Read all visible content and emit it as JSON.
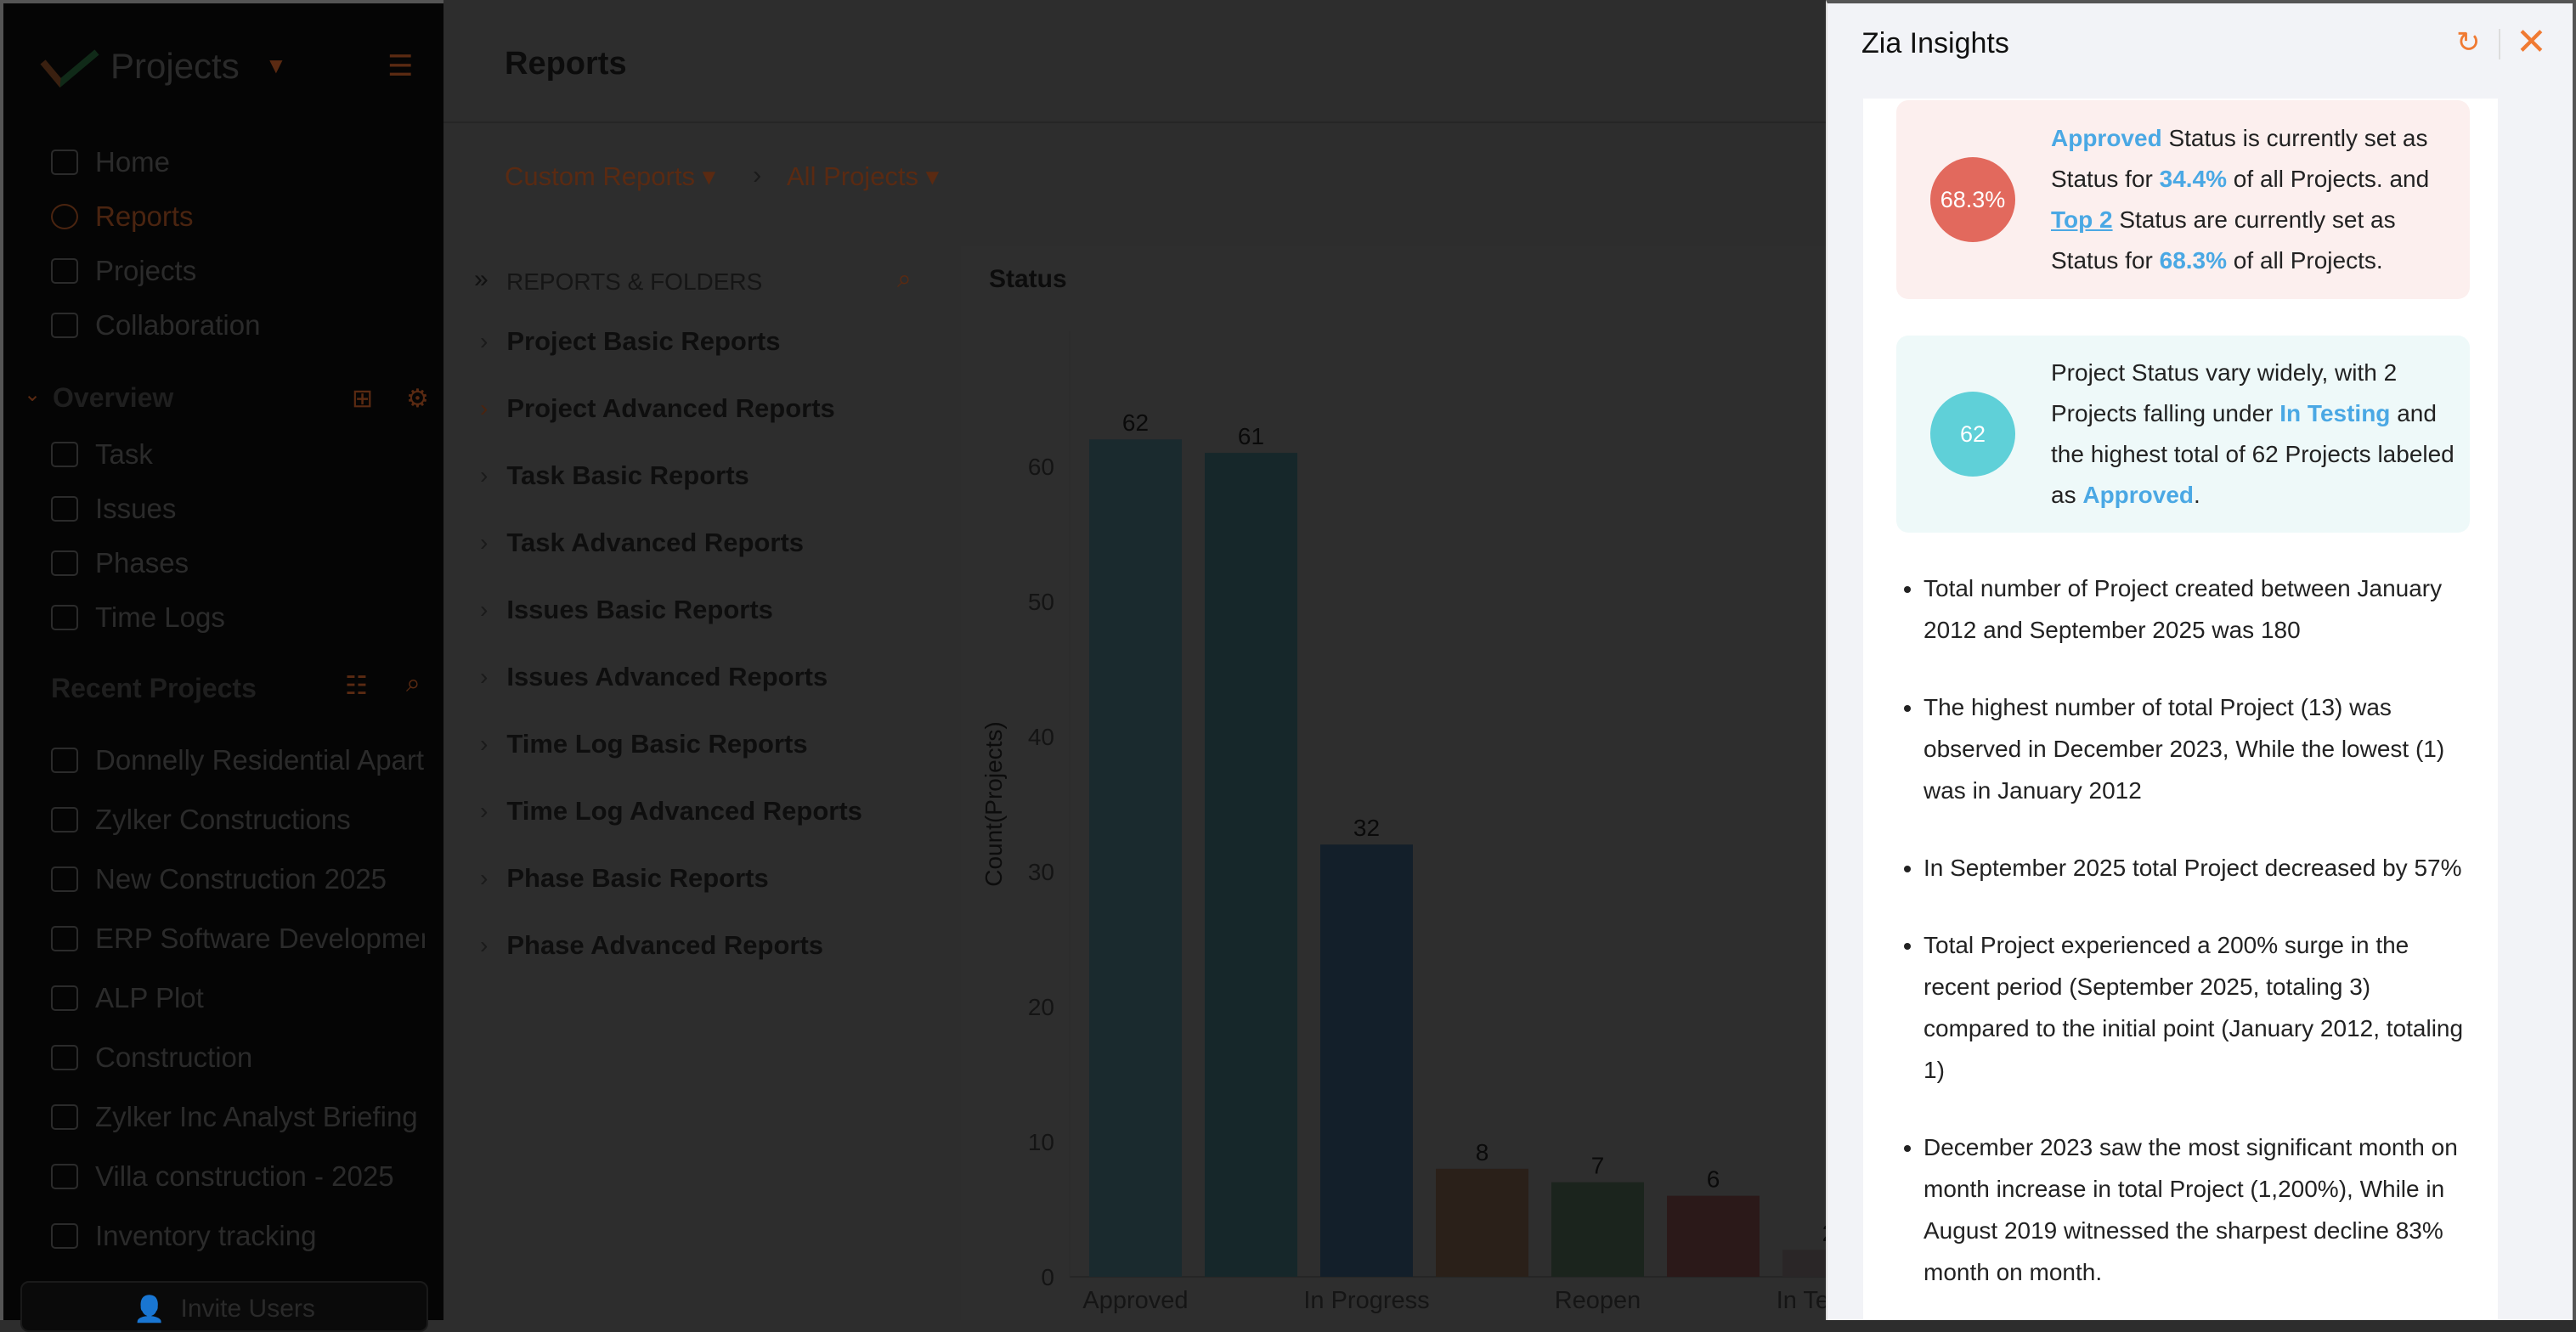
{
  "sidebar": {
    "app_title": "Projects",
    "nav": [
      {
        "label": "Home",
        "icon": "home-icon"
      },
      {
        "label": "Reports",
        "icon": "reports-icon"
      },
      {
        "label": "Projects",
        "icon": "projects-icon"
      },
      {
        "label": "Collaboration",
        "icon": "collaboration-icon"
      }
    ],
    "overview_label": "Overview",
    "overview_items": [
      {
        "label": "Task",
        "icon": "task-icon"
      },
      {
        "label": "Issues",
        "icon": "issues-icon"
      },
      {
        "label": "Phases",
        "icon": "phases-icon"
      },
      {
        "label": "Time Logs",
        "icon": "timer-icon"
      }
    ],
    "recent_label": "Recent Projects",
    "recent_projects": [
      "Donnelly Residential Apartments",
      "Zylker Constructions",
      "New Construction 2025",
      "ERP Software Development",
      "ALP Plot",
      "Construction",
      "Zylker Inc Analyst Briefing",
      "Villa construction - 2025",
      "Inventory tracking"
    ],
    "invite_label": "Invite Users"
  },
  "header": {
    "title": "Reports"
  },
  "breadcrumb": {
    "custom": "Custom Reports",
    "all": "All Projects"
  },
  "folders": {
    "heading": "REPORTS & FOLDERS",
    "items": [
      "Project Basic Reports",
      "Project Advanced Reports",
      "Task Basic Reports",
      "Task Advanced Reports",
      "Issues Basic Reports",
      "Issues Advanced Reports",
      "Time Log Basic Reports",
      "Time Log Advanced Reports",
      "Phase Basic Reports",
      "Phase Advanced Reports"
    ]
  },
  "chart_data": {
    "type": "bar",
    "title": "Status",
    "xlabel": "",
    "ylabel": "Count(Projects)",
    "categories": [
      "Approved",
      "",
      "In Progress",
      "",
      "Reopen",
      "",
      "In Testing"
    ],
    "values": [
      62,
      61,
      32,
      8,
      7,
      6,
      2
    ],
    "colors": [
      "#1a2a2e",
      "#16272a",
      "#131f2a",
      "#2a2019",
      "#1b241d",
      "#2b1919",
      "#2a2627"
    ],
    "yticks": [
      0,
      10,
      20,
      30,
      40,
      50,
      60
    ],
    "ylim": [
      0,
      70
    ],
    "grid": false
  },
  "zia": {
    "title": "Zia Insights",
    "card1": {
      "badge": "68.3%",
      "p1": "Approved",
      "p2": " Status is currently set as Status for ",
      "p3": "34.4%",
      "p4": " of all Projects. and ",
      "p5": "Top 2",
      "p6": " Status are currently set as Status for ",
      "p7": "68.3%",
      "p8": " of all Projects."
    },
    "card2": {
      "badge": "62",
      "p1": "Project Status vary widely, with 2 Projects falling under ",
      "p2": "In Testing",
      "p3": " and the highest total of 62 Projects labeled as ",
      "p4": "Approved",
      "p5": "."
    },
    "bullets": [
      "Total number of Project created between January 2012 and September 2025 was 180",
      "The highest number of total Project (13) was observed in December 2023, While the lowest (1) was in January 2012",
      "In September 2025 total Project decreased by 57%",
      "Total Project experienced a 200% surge in the recent period (September 2025, totaling 3) compared to the initial point (January 2012, totaling 1)",
      "December 2023 saw the most significant month on month increase in total Project (1,200%), While in August 2019 witnessed the sharpest decline 83% month on month."
    ]
  }
}
